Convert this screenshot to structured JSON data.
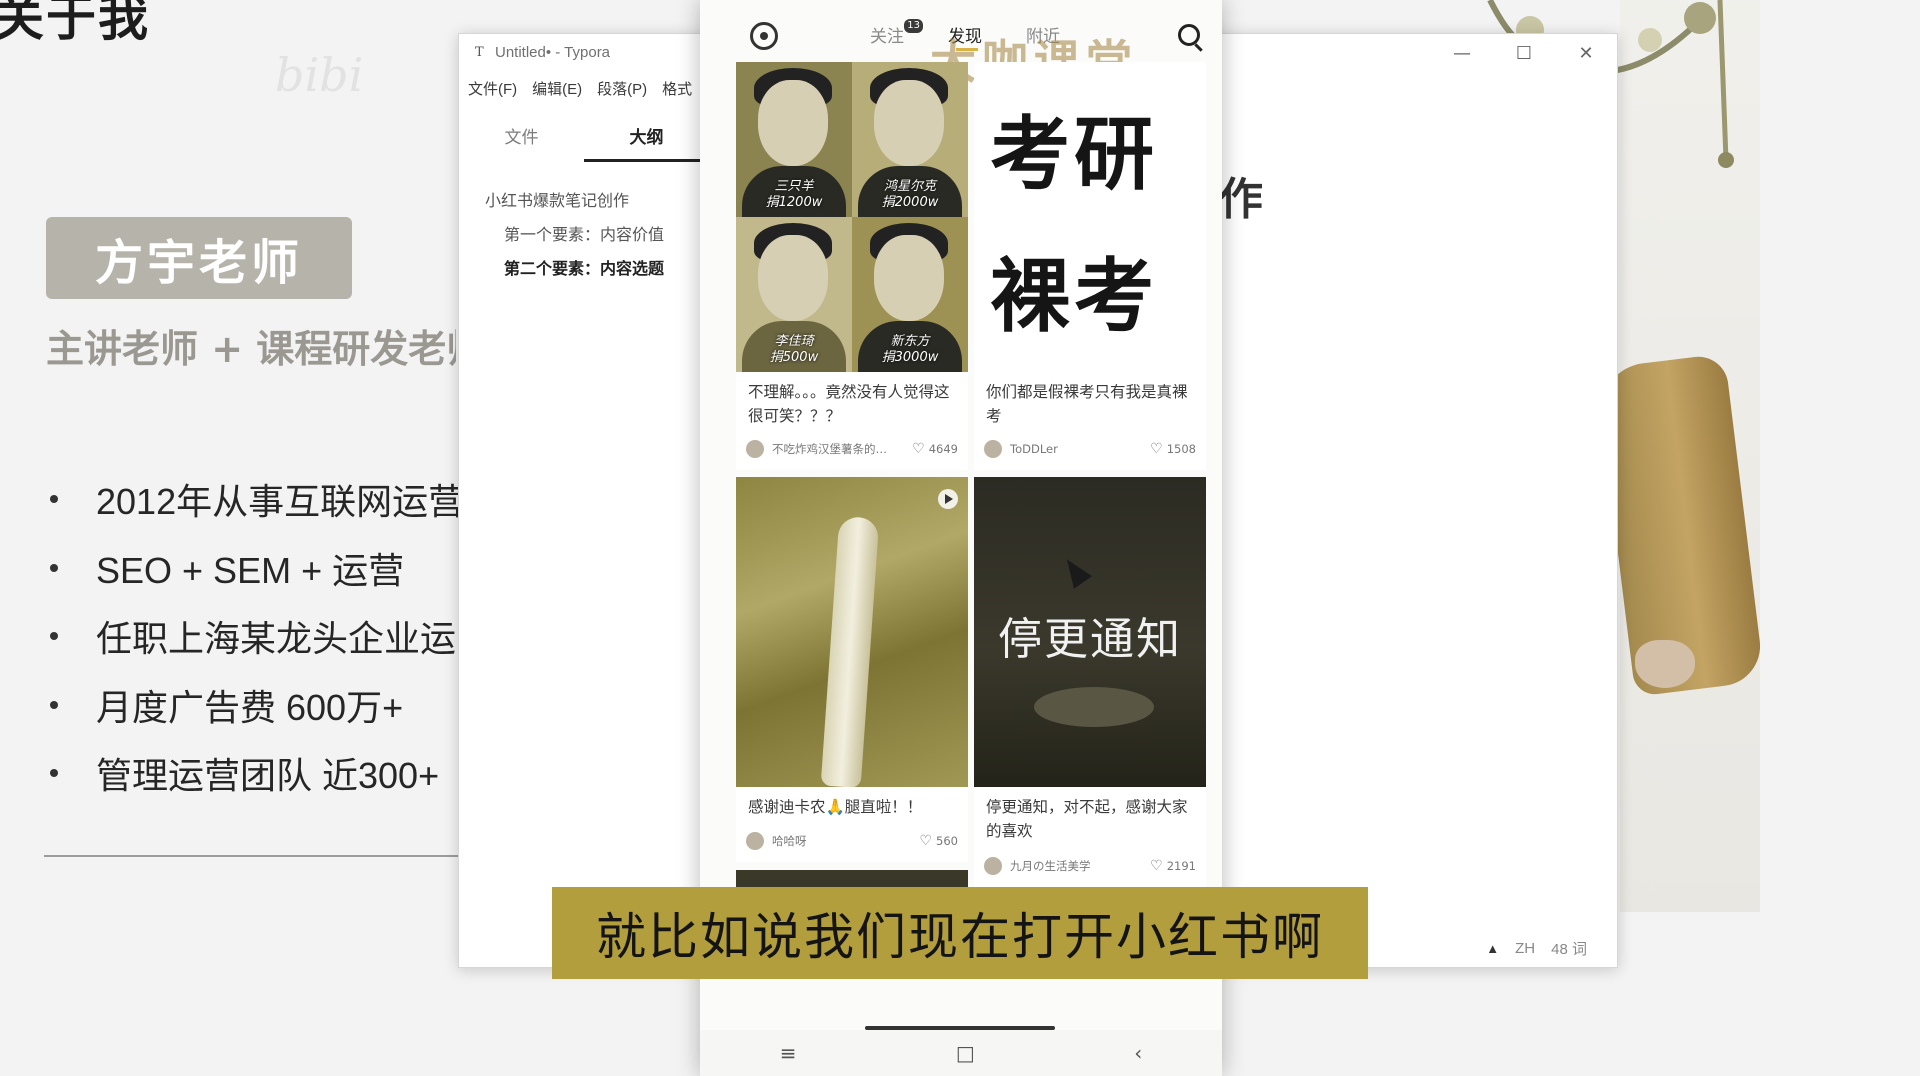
{
  "slide": {
    "heading": "关于我",
    "watermark": "bibi",
    "badge_name": "方宇老师",
    "subtitle": "主讲老师 + 课程研发老师",
    "bullets": [
      "2012年从事互联网运营",
      "SEO + SEM + 运营",
      "任职上海某龙头企业运营",
      "月度广告费 600万+",
      "管理运营团队 近300+"
    ],
    "right_fragment": "作"
  },
  "typora": {
    "title": "Untitled• - Typora",
    "app_icon": "T",
    "menu": [
      "文件(F)",
      "编辑(E)",
      "段落(P)",
      "格式"
    ],
    "side_tabs": [
      "文件",
      "大纲"
    ],
    "outline": [
      {
        "text": "小红书爆款笔记创作",
        "level": 1
      },
      {
        "text": "第一个要素：内容价值",
        "level": 2
      },
      {
        "text": "第二个要素：内容选题",
        "level": 2,
        "bold": true
      }
    ],
    "status": {
      "lang": "ZH",
      "words": "48 词"
    },
    "window_controls": [
      "minimize-icon",
      "maximize-icon",
      "close-icon"
    ]
  },
  "phone": {
    "tabs": [
      {
        "label": "关注",
        "badge": "13"
      },
      {
        "label": "发现",
        "active": true
      },
      {
        "label": "附近"
      }
    ],
    "brand_watermark": "大咖课堂",
    "cards": [
      {
        "portraits": [
          {
            "name": "三只羊",
            "amount": "捐1200w"
          },
          {
            "name": "鸿星尔克",
            "amount": "捐2000w"
          },
          {
            "name": "李佳琦",
            "amount": "捐500w"
          },
          {
            "name": "新东方",
            "amount": "捐3000w"
          }
        ],
        "caption": "不理解。。。竟然没有人觉得这很可笑？？？",
        "author": "不吃炸鸡汉堡薯条的…",
        "likes": "4649"
      },
      {
        "big_text": [
          "考研",
          "裸考"
        ],
        "caption": "你们都是假裸考只有我是真裸考",
        "author": "ToDDLer",
        "likes": "1508"
      },
      {
        "caption": "感谢迪卡农🙏腿直啦！！",
        "author": "哈哈呀",
        "likes": "560"
      },
      {
        "notice": "停更通知",
        "caption": "停更通知，对不起，感谢大家的喜欢",
        "author": "九月の生活美学",
        "likes": "2191"
      }
    ],
    "nav": [
      "≡",
      "□",
      "‹"
    ]
  },
  "subtitle_text": "就比如说我们现在打开小红书啊"
}
